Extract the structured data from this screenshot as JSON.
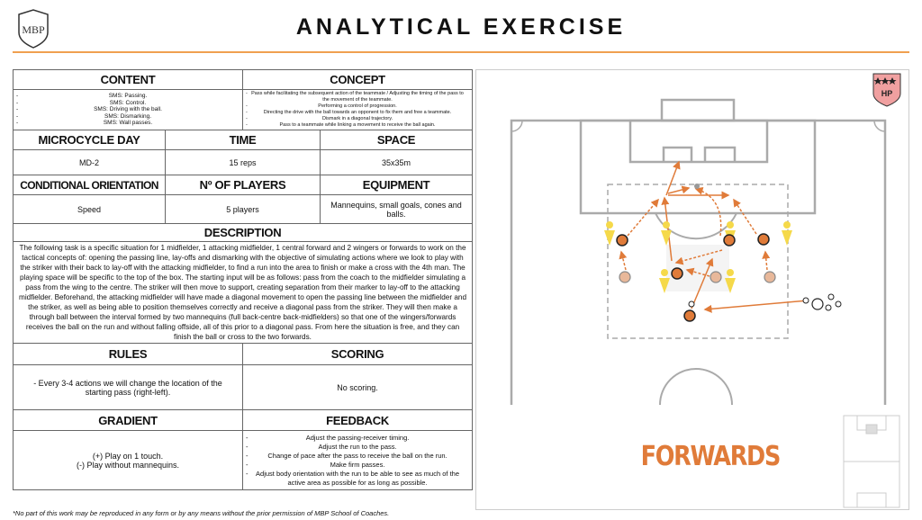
{
  "title": "ANALYTICAL EXERCISE",
  "logo_text": "MBP",
  "badge_text": "HP",
  "content": {
    "label": "CONTENT",
    "items": [
      "SMS: Passing.",
      "SMS: Control.",
      "SMS: Driving with the ball.",
      "SMS: Dismarking.",
      "SMS: Wall passes."
    ]
  },
  "concept": {
    "label": "CONCEPT",
    "items": [
      "Pass while facilitating the subsequent action of the teammate / Adjusting the timing of the pass to the movement of the teammate.",
      "Performing a control of progression.",
      "Directing the drive with the ball towards an opponent to fix them and free a teammate.",
      "Dismark in a diagonal trajectory.",
      "Pass to a teammate while linking a movement to receive the ball again."
    ]
  },
  "microcycle": {
    "label": "MICROCYCLE DAY",
    "value": "MD-2"
  },
  "time": {
    "label": "TIME",
    "value": "15 reps"
  },
  "space": {
    "label": "SPACE",
    "value": "35x35m"
  },
  "orientation": {
    "label": "CONDITIONAL ORIENTATION",
    "value": "Speed"
  },
  "players": {
    "label": "Nº OF PLAYERS",
    "value": "5 players"
  },
  "equipment": {
    "label": "EQUIPMENT",
    "value": "Mannequins, small goals, cones and balls."
  },
  "description": {
    "label": "DESCRIPTION",
    "text": "The following task is a specific situation for 1 midfielder, 1 attacking midfielder, 1 central forward and 2 wingers or forwards to work on the tactical concepts of: opening the passing line, lay-offs and dismarking with the objective of simulating actions where we look to play with the striker with their back to lay-off with the attacking midfielder, to find a run into the area to finish or make a cross with the 4th man. The playing space will be specific to the top of the box. The starting input will be as follows: pass from the coach to the midfielder simulating a pass from the wing to the centre. The striker will then move to support, creating separation from their marker to lay-off to the attacking midfielder. Beforehand, the attacking midfielder will have made a diagonal movement to open the passing line between the midfielder and the striker, as well as being able to position themselves correctly and receive a diagonal pass from the striker. They will then make a through ball between the interval formed by two mannequins (full back-centre back-midfielders) so that one of the wingers/forwards receives the ball on the run and without falling offside, all of this prior to a diagonal pass. From here the situation is free, and they can finish the ball or cross to the two forwards."
  },
  "rules": {
    "label": "RULES",
    "text": "- Every 3-4 actions we will change the location of the starting pass (right-left)."
  },
  "scoring": {
    "label": "SCORING",
    "text": "No scoring."
  },
  "gradient": {
    "label": "GRADIENT",
    "lines": [
      "(+) Play on 1 touch.",
      "(-) Play without mannequins."
    ]
  },
  "feedback": {
    "label": "FEEDBACK",
    "items": [
      "Adjust the passing-receiver timing.",
      "Adjust the run to the pass.",
      "Change of pace after the pass to receive the ball on the run.",
      "Make firm passes.",
      "Adjust body orientation with the run to be able to see as much of the active area as possible for as long as possible."
    ]
  },
  "diagram_label": "FORWARDS",
  "footer": "*No part of this work may be reproduced in any form or by any means without the prior permission of MBP School of Coaches.",
  "colors": {
    "accent": "#e07b39",
    "rule": "#f0a050",
    "cone": "#f5d94a",
    "badge": "#f0a0a0"
  }
}
